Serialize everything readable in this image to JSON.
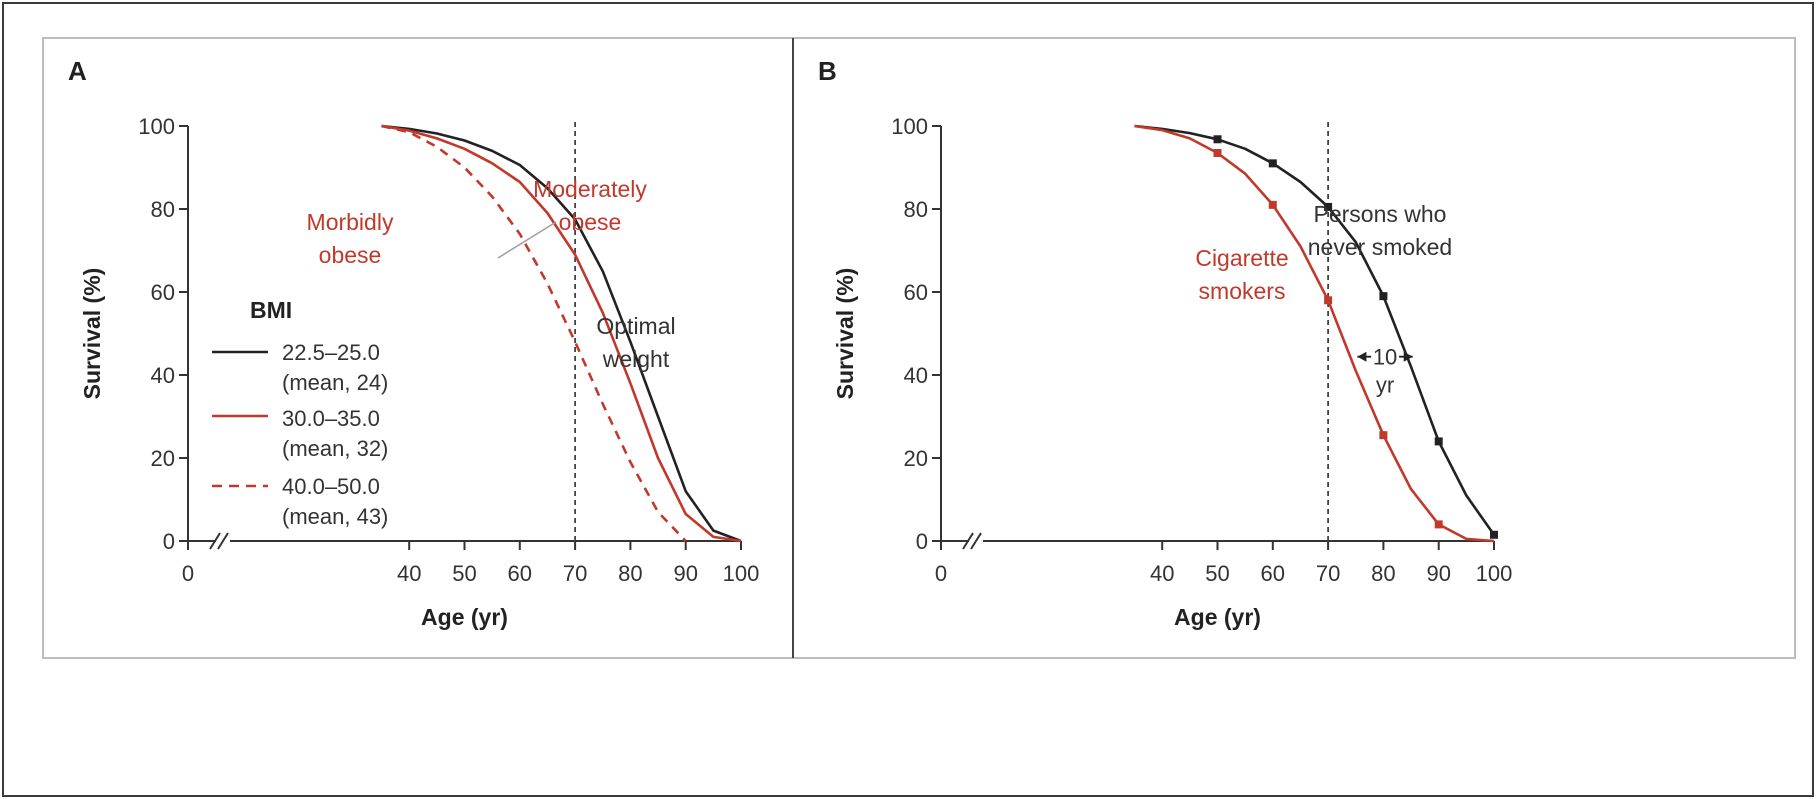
{
  "chart_data": [
    {
      "type": "line",
      "panel_label": "A",
      "xlabel": "Age (yr)",
      "ylabel": "Survival (%)",
      "xlim": [
        0,
        100
      ],
      "ylim": [
        0,
        100
      ],
      "x_axis_break": true,
      "xticks": [
        0,
        40,
        50,
        60,
        70,
        80,
        90,
        100
      ],
      "yticks": [
        0,
        20,
        40,
        60,
        80,
        100
      ],
      "reference_line_x": 70,
      "grid": false,
      "legend": {
        "title": "BMI",
        "placement": "center-left",
        "entries": [
          {
            "line1": "22.5–25.0",
            "line2": "(mean, 24)",
            "color": "#222222",
            "dashed": false
          },
          {
            "line1": "30.0–35.0",
            "line2": "(mean, 32)",
            "color": "#c0392b",
            "dashed": false
          },
          {
            "line1": "40.0–50.0",
            "line2": "(mean, 43)",
            "color": "#c0392b",
            "dashed": true
          }
        ]
      },
      "series": [
        {
          "color": "#222222",
          "dashed": false,
          "x": [
            35,
            40,
            45,
            50,
            55,
            60,
            65,
            70,
            75,
            80,
            85,
            90,
            95,
            100
          ],
          "y": [
            100,
            99.3,
            98.2,
            96.5,
            94.0,
            90.6,
            85.0,
            77.5,
            65.0,
            48.0,
            30.0,
            12.0,
            2.5,
            0
          ]
        },
        {
          "color": "#c0392b",
          "dashed": false,
          "x": [
            35,
            40,
            45,
            50,
            55,
            60,
            65,
            70,
            75,
            80,
            85,
            90,
            95,
            100
          ],
          "y": [
            100,
            98.9,
            97.0,
            94.5,
            91.0,
            86.5,
            79.0,
            69.0,
            55.0,
            38.0,
            20.0,
            6.5,
            1.0,
            0
          ]
        },
        {
          "color": "#c0392b",
          "dashed": true,
          "x": [
            35,
            40,
            45,
            50,
            55,
            60,
            65,
            70,
            75,
            80,
            85,
            90
          ],
          "y": [
            100,
            98.5,
            95.0,
            90.0,
            83.0,
            74.0,
            62.0,
            48.0,
            33.0,
            19.0,
            7.0,
            0
          ]
        }
      ],
      "annotations": [
        {
          "lines": [
            "Moderately",
            "obese"
          ],
          "color": "#c0392b"
        },
        {
          "lines": [
            "Morbidly",
            "obese"
          ],
          "color": "#c0392b"
        },
        {
          "lines": [
            "Optimal",
            "weight"
          ],
          "color": "#333333"
        }
      ]
    },
    {
      "type": "line",
      "panel_label": "B",
      "xlabel": "Age (yr)",
      "ylabel": "Survival (%)",
      "xlim": [
        0,
        100
      ],
      "ylim": [
        0,
        100
      ],
      "x_axis_break": true,
      "xticks": [
        0,
        40,
        50,
        60,
        70,
        80,
        90,
        100
      ],
      "yticks": [
        0,
        20,
        40,
        60,
        80,
        100
      ],
      "reference_line_x": 70,
      "grid": false,
      "series": [
        {
          "color": "#222222",
          "dashed": false,
          "markers_at": [
            50,
            60,
            70,
            80,
            90,
            100
          ],
          "x": [
            35,
            40,
            45,
            50,
            55,
            60,
            65,
            70,
            75,
            80,
            85,
            90,
            95,
            100
          ],
          "y": [
            100,
            99.3,
            98.3,
            96.8,
            94.5,
            91.0,
            86.5,
            80.5,
            72.0,
            59.0,
            42.0,
            24.0,
            11.0,
            1.5
          ]
        },
        {
          "color": "#c0392b",
          "dashed": false,
          "markers_at": [
            50,
            60,
            70,
            80,
            90
          ],
          "x": [
            35,
            40,
            45,
            50,
            55,
            60,
            65,
            70,
            75,
            80,
            85,
            90,
            95,
            100
          ],
          "y": [
            100,
            99.0,
            97.0,
            93.5,
            88.5,
            81.0,
            71.0,
            58.0,
            41.0,
            25.5,
            12.5,
            4.0,
            0.5,
            0
          ]
        }
      ],
      "annotations": [
        {
          "lines": [
            "Persons who",
            "never smoked"
          ],
          "color": "#333333"
        },
        {
          "lines": [
            "Cigarette",
            "smokers"
          ],
          "color": "#c0392b"
        }
      ],
      "gap_annotation": {
        "lines": [
          "10",
          "yr"
        ],
        "x_from": 75.3,
        "x_to": 85.3,
        "y": 42
      }
    }
  ]
}
